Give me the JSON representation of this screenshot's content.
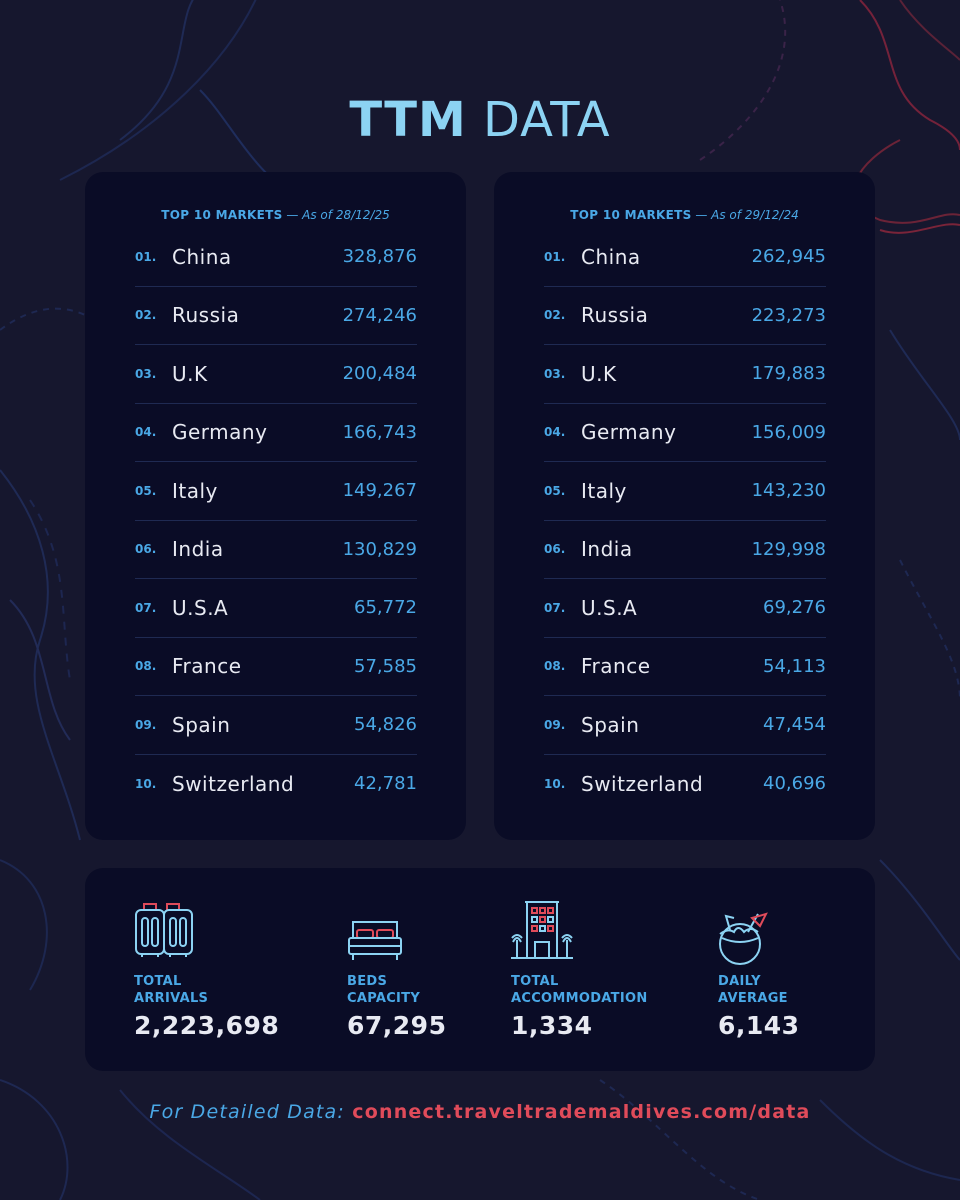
{
  "header": {
    "title_bold": "TTM",
    "title_rest": "DATA"
  },
  "panels": [
    {
      "heading": "TOP 10 MARKETS",
      "date": "— As of 28/12/25",
      "rows": [
        {
          "rank": "01.",
          "country": "China",
          "value": "328,876"
        },
        {
          "rank": "02.",
          "country": "Russia",
          "value": "274,246"
        },
        {
          "rank": "03.",
          "country": "U.K",
          "value": "200,484"
        },
        {
          "rank": "04.",
          "country": "Germany",
          "value": "166,743"
        },
        {
          "rank": "05.",
          "country": "Italy",
          "value": "149,267"
        },
        {
          "rank": "06.",
          "country": "India",
          "value": "130,829"
        },
        {
          "rank": "07.",
          "country": "U.S.A",
          "value": "65,772"
        },
        {
          "rank": "08.",
          "country": "France",
          "value": "57,585"
        },
        {
          "rank": "09.",
          "country": "Spain",
          "value": "54,826"
        },
        {
          "rank": "10.",
          "country": "Switzerland",
          "value": "42,781"
        }
      ]
    },
    {
      "heading": "TOP 10 MARKETS",
      "date": "— As of 29/12/24",
      "rows": [
        {
          "rank": "01.",
          "country": "China",
          "value": "262,945"
        },
        {
          "rank": "02.",
          "country": "Russia",
          "value": "223,273"
        },
        {
          "rank": "03.",
          "country": "U.K",
          "value": "179,883"
        },
        {
          "rank": "04.",
          "country": "Germany",
          "value": "156,009"
        },
        {
          "rank": "05.",
          "country": "Italy",
          "value": "143,230"
        },
        {
          "rank": "06.",
          "country": "India",
          "value": "129,998"
        },
        {
          "rank": "07.",
          "country": "U.S.A",
          "value": "69,276"
        },
        {
          "rank": "08.",
          "country": "France",
          "value": "54,113"
        },
        {
          "rank": "09.",
          "country": "Spain",
          "value": "47,454"
        },
        {
          "rank": "10.",
          "country": "Switzerland",
          "value": "40,696"
        }
      ]
    }
  ],
  "stats": [
    {
      "icon": "luggage-icon",
      "label_1": "TOTAL",
      "label_2": "ARRIVALS",
      "value": "2,223,698"
    },
    {
      "icon": "bed-icon",
      "label_1": "BEDS",
      "label_2": "CAPACITY",
      "value": "67,295"
    },
    {
      "icon": "hotel-building-icon",
      "label_1": "TOTAL",
      "label_2": "ACCOMMODATION",
      "value": "1,334"
    },
    {
      "icon": "coconut-drink-icon",
      "label_1": "DAILY",
      "label_2": "AVERAGE",
      "value": "6,143"
    }
  ],
  "footer": {
    "label": "For Detailed Data:",
    "link": "connect.traveltrademaldives.com/data"
  },
  "colors": {
    "background": "#16172e",
    "panel": "#0a0c26",
    "accent_blue": "#4aa8e6",
    "accent_light_blue": "#8cd3f3",
    "accent_red": "#e04b5a",
    "text": "#e8eaf2"
  }
}
